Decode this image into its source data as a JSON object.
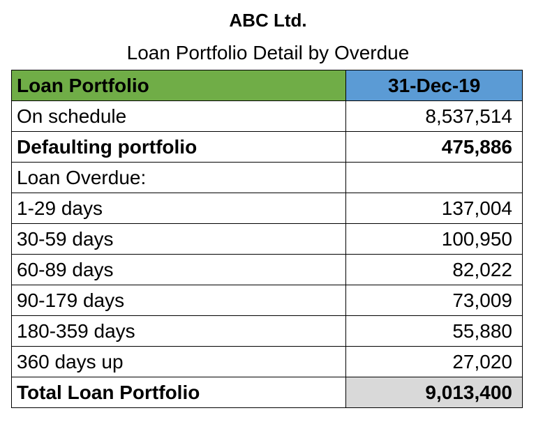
{
  "company": "ABC Ltd.",
  "report_title": "Loan Portfolio Detail by Overdue",
  "table": {
    "header": {
      "label": "Loan Portfolio",
      "value": "31-Dec-19"
    },
    "rows": [
      {
        "label": "On schedule",
        "value": "8,537,514",
        "bold": false
      },
      {
        "label": "Defaulting portfolio",
        "value": "475,886",
        "bold": true
      },
      {
        "label": "Loan Overdue:",
        "value": "",
        "bold": false
      },
      {
        "label": "1-29 days",
        "value": "137,004",
        "bold": false
      },
      {
        "label": "30-59 days",
        "value": "100,950",
        "bold": false
      },
      {
        "label": "60-89 days",
        "value": "82,022",
        "bold": false
      },
      {
        "label": "90-179 days",
        "value": "73,009",
        "bold": false
      },
      {
        "label": "180-359 days",
        "value": "55,880",
        "bold": false
      },
      {
        "label": "360 days up",
        "value": "27,020",
        "bold": false
      }
    ],
    "total": {
      "label": "Total Loan Portfolio",
      "value": "9,013,400"
    }
  },
  "colors": {
    "header_label_bg": "#70ad47",
    "header_value_bg": "#5b9bd5",
    "total_value_bg": "#d9d9d9"
  }
}
